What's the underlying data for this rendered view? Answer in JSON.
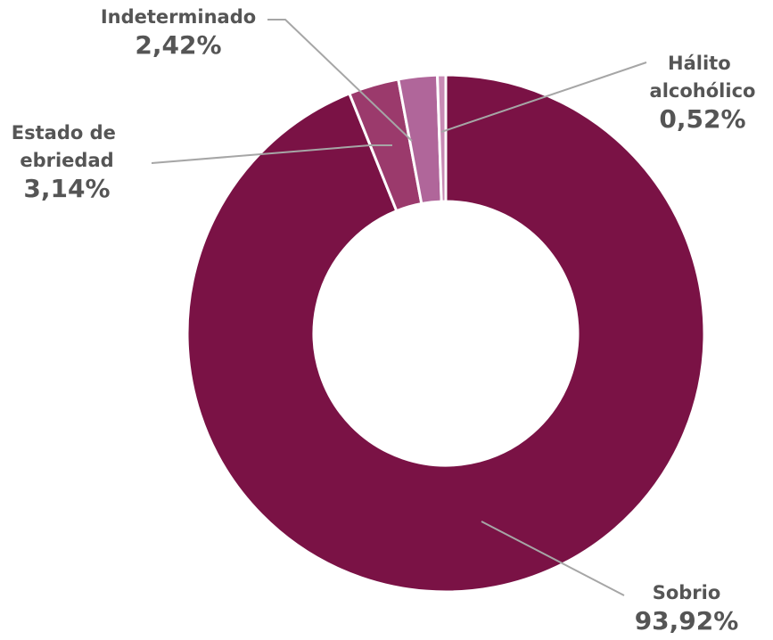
{
  "chart_data": {
    "type": "donut",
    "categories": [
      "Sobrio",
      "Estado de ebriedad",
      "Indeterminado",
      "Hálito alcohólico"
    ],
    "values": [
      93.92,
      3.14,
      2.42,
      0.52
    ],
    "value_labels": [
      "93,92%",
      "3,14%",
      "2,42%",
      "0,52%"
    ],
    "colors": [
      "#7a1245",
      "#9b3a6c",
      "#b0669a",
      "#c98bb5"
    ]
  }
}
